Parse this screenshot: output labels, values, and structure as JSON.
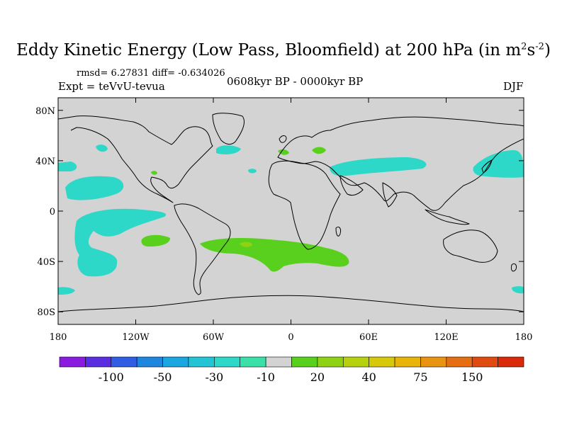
{
  "title": {
    "main": "Eddy Kinetic Energy (Low Pass, Bloomfield) at 200 hPa (in m",
    "sup1": "2",
    "mid": "s",
    "sup2": "-2",
    "close": ")"
  },
  "stats": "rmsd= 6.27831 diff= -0.634026",
  "experiment": "Expt = teVvU-tevua",
  "period": "0608kyr BP - 0000kyr BP",
  "season": "DJF",
  "map": {
    "projection": "cylindrical-equidistant",
    "lon_range": [
      -180,
      180
    ],
    "lat_range": [
      -90,
      90
    ],
    "background_color": "#d3d3d3",
    "coastline_color": "#000000",
    "y_ticks": [
      {
        "lat": 80,
        "label": "80N"
      },
      {
        "lat": 40,
        "label": "40N"
      },
      {
        "lat": 0,
        "label": "0"
      },
      {
        "lat": -40,
        "label": "40S"
      },
      {
        "lat": -80,
        "label": "80S"
      }
    ],
    "x_ticks": [
      {
        "lon": -180,
        "label": "180"
      },
      {
        "lon": -120,
        "label": "120W"
      },
      {
        "lon": -60,
        "label": "60W"
      },
      {
        "lon": 0,
        "label": "0"
      },
      {
        "lon": 60,
        "label": "60E"
      },
      {
        "lon": 120,
        "label": "120E"
      },
      {
        "lon": 180,
        "label": "180"
      }
    ]
  },
  "colorbar": {
    "colors": [
      "#8a1ce0",
      "#5a2ee0",
      "#2f5de4",
      "#1f86e0",
      "#1aa6e0",
      "#22c4d6",
      "#2ed8c8",
      "#3be0a8",
      "#d3d3d3",
      "#5ad01e",
      "#8ed214",
      "#b6d20e",
      "#d8c80a",
      "#e8b40a",
      "#e89410",
      "#e66e12",
      "#e04a10",
      "#d82a0a"
    ],
    "labels": [
      {
        "index": 2,
        "text": "-100"
      },
      {
        "index": 4,
        "text": "-50"
      },
      {
        "index": 6,
        "text": "-30"
      },
      {
        "index": 8,
        "text": "-10"
      },
      {
        "index": 10,
        "text": "20"
      },
      {
        "index": 12,
        "text": "40"
      },
      {
        "index": 14,
        "text": "75"
      },
      {
        "index": 16,
        "text": "150"
      }
    ]
  }
}
